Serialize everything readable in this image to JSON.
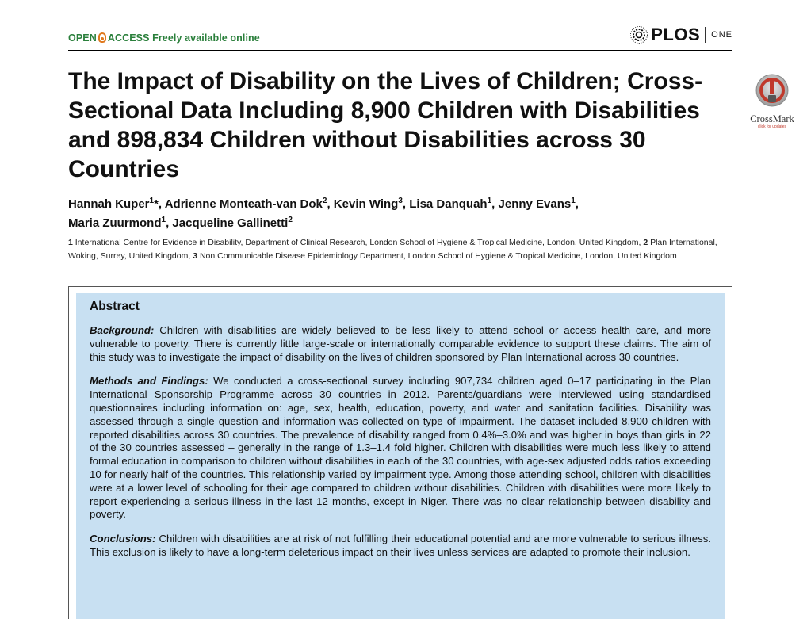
{
  "header": {
    "open_access_left": "OPEN",
    "open_access_right": "ACCESS",
    "freely_available": "Freely available online",
    "journal_logo_word": "PLOS",
    "journal_logo_suffix": "ONE"
  },
  "crossmark": {
    "label": "CrossMark",
    "sublabel": "click for updates"
  },
  "article": {
    "title": "The Impact of Disability on the Lives of Children; Cross-Sectional Data Including 8,900 Children with Disabilities and 898,834 Children without Disabilities across 30 Countries",
    "authors": [
      {
        "name": "Hannah Kuper",
        "aff": "1",
        "mark": "*"
      },
      {
        "name": "Adrienne Monteath-van Dok",
        "aff": "2"
      },
      {
        "name": "Kevin Wing",
        "aff": "3"
      },
      {
        "name": "Lisa Danquah",
        "aff": "1"
      },
      {
        "name": "Jenny Evans",
        "aff": "1"
      },
      {
        "name": "Maria Zuurmond",
        "aff": "1"
      },
      {
        "name": "Jacqueline Gallinetti",
        "aff": "2"
      }
    ],
    "affiliations": [
      {
        "num": "1",
        "text": "International Centre for Evidence in Disability, Department of Clinical Research, London School of Hygiene & Tropical Medicine, London, United Kingdom,"
      },
      {
        "num": "2",
        "text": "Plan International, Woking, Surrey, United Kingdom,"
      },
      {
        "num": "3",
        "text": "Non Communicable Disease Epidemiology Department, London School of Hygiene & Tropical Medicine, London, United Kingdom"
      }
    ]
  },
  "abstract": {
    "heading": "Abstract",
    "background_label": "Background:",
    "background_text": "Children with disabilities are widely believed to be less likely to attend school or access health care, and more vulnerable to poverty. There is currently little large-scale or internationally comparable evidence to support these claims. The aim of this study was to investigate the impact of disability on the lives of children sponsored by Plan International across 30 countries.",
    "methods_label": "Methods and Findings:",
    "methods_text": "We conducted a cross-sectional survey including 907,734 children aged 0–17 participating in the Plan International Sponsorship Programme across 30 countries in 2012. Parents/guardians were interviewed using standardised questionnaires including information on: age, sex, health, education, poverty, and water and sanitation facilities. Disability was assessed through a single question and information was collected on type of impairment. The dataset included 8,900 children with reported disabilities across 30 countries. The prevalence of disability ranged from 0.4%–3.0% and was higher in boys than girls in 22 of the 30 countries assessed – generally in the range of 1.3–1.4 fold higher. Children with disabilities were much less likely to attend formal education in comparison to children without disabilities in each of the 30 countries, with age-sex adjusted odds ratios exceeding 10 for nearly half of the countries. This relationship varied by impairment type. Among those attending school, children with disabilities were at a lower level of schooling for their age compared to children without disabilities. Children with disabilities were more likely to report experiencing a serious illness in the last 12 months, except in Niger. There was no clear relationship between disability and poverty.",
    "conclusions_label": "Conclusions:",
    "conclusions_text": "Children with disabilities are at risk of not fulfilling their educational potential and are more vulnerable to serious illness. This exclusion is likely to have a long-term deleterious impact on their lives unless services are adapted to promote their inclusion."
  },
  "colors": {
    "open_access_green": "#2a7f3b",
    "open_access_lock": "#e07a1f",
    "abstract_background": "#c8e0f2",
    "crossmark_red": "#c0392b"
  },
  "icons": {
    "open_access": "open-access-lock-icon",
    "plos": "plos-emblem-icon",
    "crossmark": "crossmark-icon"
  }
}
